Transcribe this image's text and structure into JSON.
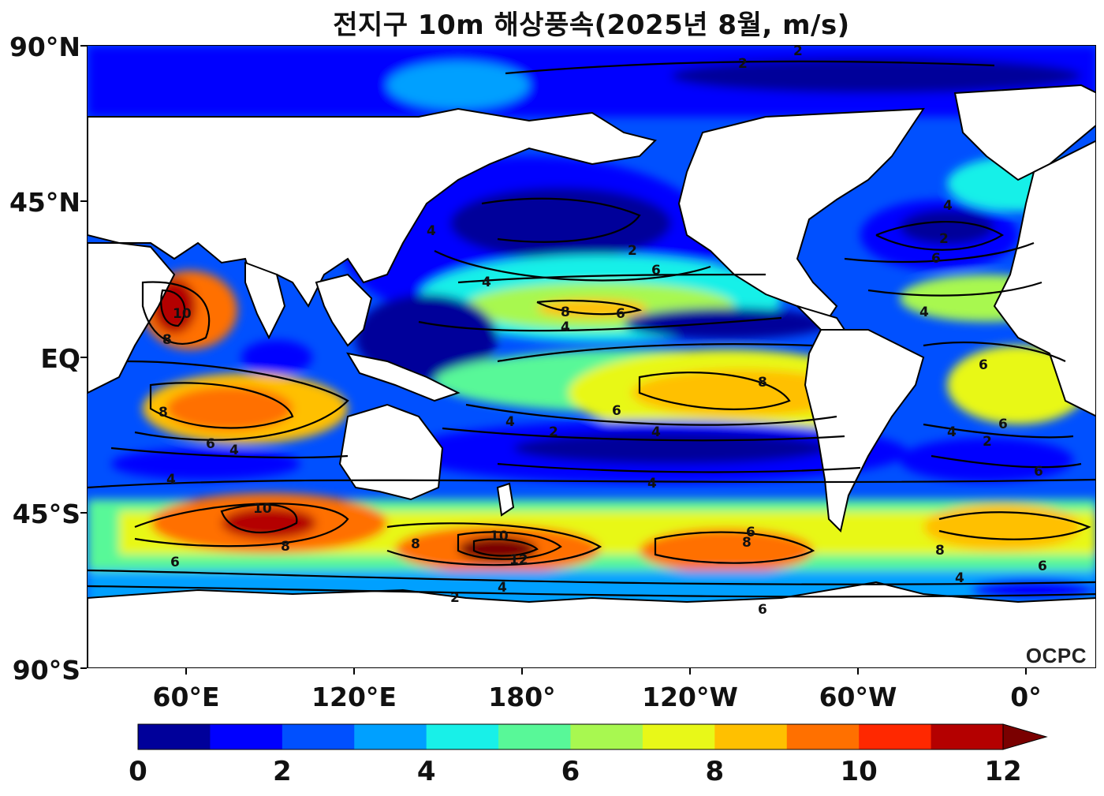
{
  "title": "전지구 10m 해상풍속(2025년 8월, m/s)",
  "y_axis": {
    "ticks": [
      "90°N",
      "45°N",
      "EQ",
      "45°S",
      "90°S"
    ]
  },
  "x_axis": {
    "ticks": [
      "60°E",
      "120°E",
      "180°",
      "120°W",
      "60°W",
      "0°"
    ]
  },
  "colorbar": {
    "tick_labels": [
      "0",
      "2",
      "4",
      "6",
      "8",
      "10",
      "12"
    ],
    "levels": [
      0,
      1,
      2,
      3,
      4,
      5,
      6,
      7,
      8,
      9,
      10,
      11,
      12
    ],
    "colors": [
      "#00009a",
      "#0000ff",
      "#0050ff",
      "#00a0ff",
      "#18f0e8",
      "#58f898",
      "#a8f850",
      "#e8f818",
      "#ffc000",
      "#ff7000",
      "#ff2800",
      "#b40000",
      "#7a0000"
    ],
    "extend": "max"
  },
  "contour_labels": [
    "2",
    "4",
    "6",
    "8",
    "10",
    "12"
  ],
  "watermark": "OCPC"
}
